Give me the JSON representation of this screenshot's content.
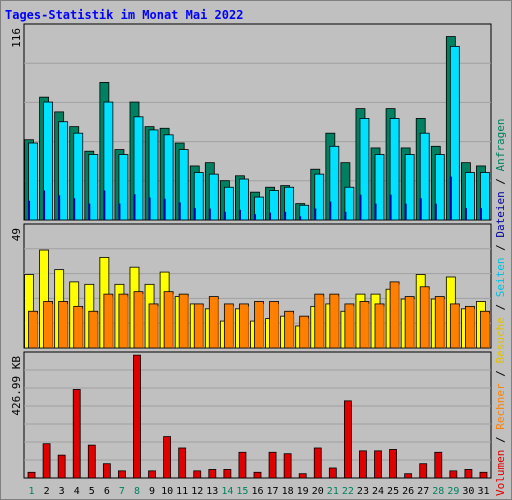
{
  "title": "Tages-Statistik im Monat Mai 2022",
  "colors": {
    "background": "#c0c0c0",
    "title": "#0000ff",
    "hits_front": "#00e0ff",
    "hits_back": "#008060",
    "files_front": "#0000a0",
    "pages_front": "#ff8000",
    "visits_back": "#ffff00",
    "kbytes": "#e00000",
    "weekend_label": "#008060",
    "weekday_label": "#0000a0"
  },
  "side_legend": {
    "anfragen": "Anfragen",
    "dateien": "Dateien",
    "seiten": "Seiten",
    "besuche": "Besuche",
    "rechner": "Rechner",
    "volumen": "Volumen",
    "sep": "/"
  },
  "chart_data": [
    {
      "type": "bar",
      "panel": "requests",
      "ymax_label": "116",
      "ylim": [
        0,
        116
      ],
      "categories": [
        "1",
        "2",
        "3",
        "4",
        "5",
        "6",
        "7",
        "8",
        "9",
        "10",
        "11",
        "12",
        "13",
        "14",
        "15",
        "16",
        "17",
        "18",
        "19",
        "20",
        "21",
        "22",
        "23",
        "24",
        "25",
        "26",
        "27",
        "28",
        "29",
        "30",
        "31"
      ],
      "weekend_days": [
        "1",
        "7",
        "8",
        "14",
        "15",
        "21",
        "22",
        "28",
        "29"
      ],
      "series": [
        {
          "name": "Anfragen",
          "values": [
            49,
            75,
            66,
            57,
            42,
            84,
            43,
            72,
            57,
            56,
            47,
            33,
            35,
            24,
            27,
            17,
            20,
            21,
            10,
            31,
            53,
            35,
            68,
            44,
            68,
            44,
            62,
            45,
            112,
            35,
            33
          ]
        },
        {
          "name": "Dateien",
          "values": [
            47,
            72,
            60,
            53,
            40,
            72,
            40,
            63,
            55,
            52,
            43,
            29,
            28,
            20,
            25,
            14,
            18,
            20,
            9,
            28,
            45,
            20,
            62,
            40,
            62,
            40,
            53,
            40,
            106,
            29,
            29
          ]
        }
      ]
    },
    {
      "type": "bar",
      "panel": "visits",
      "ymax_label": "49",
      "ylim": [
        0,
        49
      ],
      "categories": [
        "1",
        "2",
        "3",
        "4",
        "5",
        "6",
        "7",
        "8",
        "9",
        "10",
        "11",
        "12",
        "13",
        "14",
        "15",
        "16",
        "17",
        "18",
        "19",
        "20",
        "21",
        "22",
        "23",
        "24",
        "25",
        "26",
        "27",
        "28",
        "29",
        "30",
        "31"
      ],
      "series": [
        {
          "name": "Seiten",
          "values": [
            30,
            40,
            32,
            27,
            26,
            37,
            26,
            33,
            26,
            31,
            21,
            18,
            16,
            11,
            16,
            11,
            12,
            13,
            9,
            17,
            18,
            15,
            22,
            22,
            24,
            20,
            30,
            20,
            29,
            16,
            19
          ]
        },
        {
          "name": "Besuche",
          "values": [
            15,
            19,
            19,
            17,
            15,
            22,
            22,
            23,
            18,
            23,
            22,
            18,
            21,
            18,
            18,
            19,
            19,
            15,
            13,
            22,
            22,
            18,
            19,
            18,
            27,
            21,
            25,
            21,
            18,
            17,
            15
          ]
        },
        {
          "name": "Rechner",
          "values": [
            14,
            18,
            18,
            16,
            14,
            21,
            21,
            22,
            17,
            22,
            21,
            17,
            20,
            17,
            17,
            18,
            18,
            14,
            12,
            21,
            21,
            17,
            18,
            17,
            26,
            20,
            24,
            20,
            17,
            16,
            14
          ]
        }
      ]
    },
    {
      "type": "bar",
      "panel": "volume",
      "ymax_label": "426.99 KB",
      "ylim": [
        0,
        426.99
      ],
      "categories": [
        "1",
        "2",
        "3",
        "4",
        "5",
        "6",
        "7",
        "8",
        "9",
        "10",
        "11",
        "12",
        "13",
        "14",
        "15",
        "16",
        "17",
        "18",
        "19",
        "20",
        "21",
        "22",
        "23",
        "24",
        "25",
        "26",
        "27",
        "28",
        "29",
        "30",
        "31"
      ],
      "series": [
        {
          "name": "Volumen",
          "values": [
            20,
            120,
            80,
            310,
            115,
            50,
            25,
            430,
            25,
            145,
            105,
            25,
            30,
            30,
            90,
            20,
            90,
            85,
            15,
            105,
            35,
            270,
            95,
            95,
            100,
            15,
            50,
            90,
            25,
            30,
            20
          ]
        }
      ]
    }
  ]
}
